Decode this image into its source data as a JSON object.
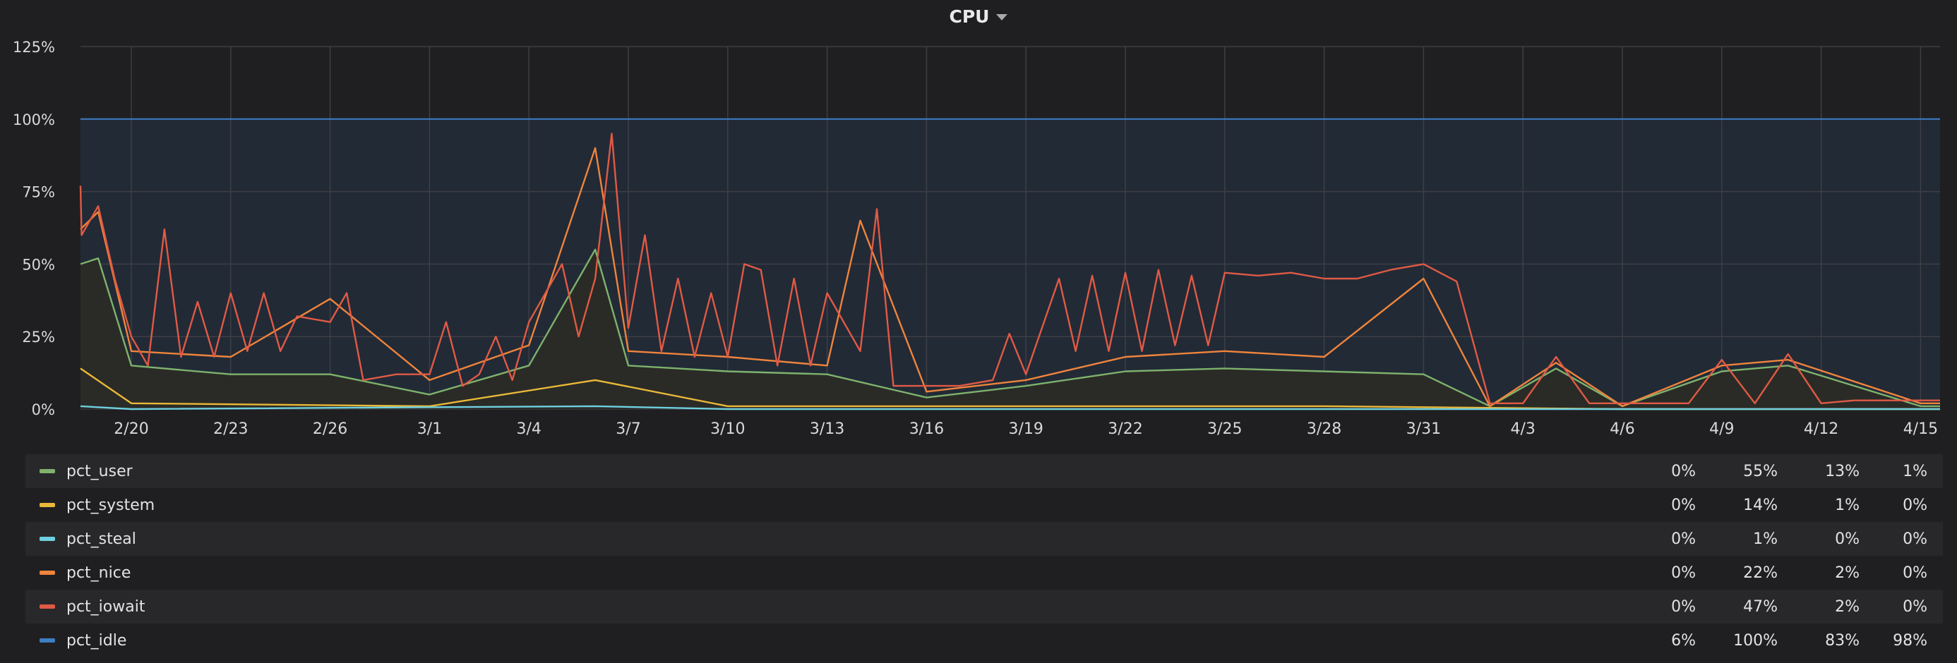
{
  "panel": {
    "title": "CPU"
  },
  "chart_data": {
    "type": "line",
    "ylim": [
      0,
      125
    ],
    "y_ticks": [
      "0%",
      "25%",
      "50%",
      "75%",
      "100%",
      "125%"
    ],
    "x_ticks": [
      "2/20",
      "2/23",
      "2/26",
      "3/1",
      "3/4",
      "3/7",
      "3/10",
      "3/13",
      "3/16",
      "3/19",
      "3/22",
      "3/25",
      "3/28",
      "3/31",
      "4/3",
      "4/6",
      "4/9",
      "4/12",
      "4/15"
    ],
    "grid": true,
    "legend_placement": "bottom",
    "series": [
      {
        "name": "pct_idle",
        "color": "#3e7ec5",
        "points": [
          [
            "2/18",
            100
          ],
          [
            "2/20",
            100
          ],
          [
            "3/1",
            100
          ],
          [
            "3/10",
            100
          ],
          [
            "3/19",
            100
          ],
          [
            "3/28",
            100
          ],
          [
            "4/6",
            100
          ],
          [
            "4/15",
            100
          ],
          [
            "4/16",
            100
          ]
        ]
      },
      {
        "name": "pct_iowait",
        "color": "#e05a45",
        "points": [
          [
            "2/18",
            77
          ],
          [
            "2/18",
            60
          ],
          [
            "2/19",
            70
          ],
          [
            "2/19",
            45
          ],
          [
            "2/20",
            25
          ],
          [
            "2/20",
            15
          ],
          [
            "2/21",
            62
          ],
          [
            "2/21",
            18
          ],
          [
            "2/22",
            37
          ],
          [
            "2/22",
            18
          ],
          [
            "2/23",
            40
          ],
          [
            "2/23",
            20
          ],
          [
            "2/24",
            40
          ],
          [
            "2/24",
            20
          ],
          [
            "2/25",
            32
          ],
          [
            "2/26",
            30
          ],
          [
            "2/26",
            40
          ],
          [
            "2/27",
            10
          ],
          [
            "2/28",
            12
          ],
          [
            "3/1",
            12
          ],
          [
            "3/1",
            30
          ],
          [
            "3/2",
            8
          ],
          [
            "3/2",
            12
          ],
          [
            "3/3",
            25
          ],
          [
            "3/3",
            10
          ],
          [
            "3/4",
            30
          ],
          [
            "3/5",
            50
          ],
          [
            "3/5",
            25
          ],
          [
            "3/6",
            45
          ],
          [
            "3/6",
            95
          ],
          [
            "3/7",
            28
          ],
          [
            "3/7",
            60
          ],
          [
            "3/8",
            20
          ],
          [
            "3/8",
            45
          ],
          [
            "3/9",
            18
          ],
          [
            "3/9",
            40
          ],
          [
            "3/10",
            18
          ],
          [
            "3/10",
            50
          ],
          [
            "3/11",
            48
          ],
          [
            "3/11",
            15
          ],
          [
            "3/12",
            45
          ],
          [
            "3/12",
            15
          ],
          [
            "3/13",
            40
          ],
          [
            "3/14",
            20
          ],
          [
            "3/14",
            69
          ],
          [
            "3/15",
            8
          ],
          [
            "3/16",
            8
          ],
          [
            "3/17",
            8
          ],
          [
            "3/18",
            10
          ],
          [
            "3/18",
            26
          ],
          [
            "3/19",
            12
          ],
          [
            "3/20",
            45
          ],
          [
            "3/20",
            20
          ],
          [
            "3/21",
            46
          ],
          [
            "3/21",
            20
          ],
          [
            "3/22",
            47
          ],
          [
            "3/22",
            20
          ],
          [
            "3/23",
            48
          ],
          [
            "3/23",
            22
          ],
          [
            "3/24",
            46
          ],
          [
            "3/24",
            22
          ],
          [
            "3/25",
            47
          ],
          [
            "3/26",
            46
          ],
          [
            "3/27",
            47
          ],
          [
            "3/28",
            45
          ],
          [
            "3/29",
            45
          ],
          [
            "3/30",
            48
          ],
          [
            "3/31",
            50
          ],
          [
            "4/1",
            44
          ],
          [
            "4/2",
            2
          ],
          [
            "4/3",
            2
          ],
          [
            "4/4",
            18
          ],
          [
            "4/5",
            2
          ],
          [
            "4/6",
            2
          ],
          [
            "4/7",
            2
          ],
          [
            "4/8",
            2
          ],
          [
            "4/9",
            17
          ],
          [
            "4/10",
            2
          ],
          [
            "4/11",
            19
          ],
          [
            "4/12",
            2
          ],
          [
            "4/13",
            3
          ],
          [
            "4/14",
            3
          ],
          [
            "4/15",
            3
          ],
          [
            "4/16",
            3
          ]
        ]
      },
      {
        "name": "pct_nice",
        "color": "#ef843c",
        "points": [
          [
            "2/18",
            62
          ],
          [
            "2/19",
            68
          ],
          [
            "2/20",
            20
          ],
          [
            "2/23",
            18
          ],
          [
            "2/26",
            38
          ],
          [
            "3/1",
            10
          ],
          [
            "3/4",
            22
          ],
          [
            "3/6",
            90
          ],
          [
            "3/7",
            20
          ],
          [
            "3/10",
            18
          ],
          [
            "3/13",
            15
          ],
          [
            "3/14",
            65
          ],
          [
            "3/16",
            6
          ],
          [
            "3/19",
            10
          ],
          [
            "3/22",
            18
          ],
          [
            "3/25",
            20
          ],
          [
            "3/28",
            18
          ],
          [
            "3/31",
            45
          ],
          [
            "4/2",
            1
          ],
          [
            "4/4",
            16
          ],
          [
            "4/6",
            1
          ],
          [
            "4/9",
            15
          ],
          [
            "4/11",
            17
          ],
          [
            "4/15",
            2
          ],
          [
            "4/16",
            2
          ]
        ]
      },
      {
        "name": "pct_user",
        "color": "#7eb26d",
        "points": [
          [
            "2/18",
            50
          ],
          [
            "2/19",
            52
          ],
          [
            "2/20",
            15
          ],
          [
            "2/23",
            12
          ],
          [
            "2/26",
            12
          ],
          [
            "3/1",
            5
          ],
          [
            "3/4",
            15
          ],
          [
            "3/6",
            55
          ],
          [
            "3/7",
            15
          ],
          [
            "3/10",
            13
          ],
          [
            "3/13",
            12
          ],
          [
            "3/16",
            4
          ],
          [
            "3/19",
            8
          ],
          [
            "3/22",
            13
          ],
          [
            "3/25",
            14
          ],
          [
            "3/28",
            13
          ],
          [
            "3/31",
            12
          ],
          [
            "4/2",
            1
          ],
          [
            "4/4",
            14
          ],
          [
            "4/6",
            1
          ],
          [
            "4/9",
            13
          ],
          [
            "4/11",
            15
          ],
          [
            "4/15",
            1
          ],
          [
            "4/16",
            1
          ]
        ]
      },
      {
        "name": "pct_system",
        "color": "#eab839",
        "points": [
          [
            "2/18",
            14
          ],
          [
            "2/20",
            2
          ],
          [
            "3/1",
            1
          ],
          [
            "3/6",
            10
          ],
          [
            "3/10",
            1
          ],
          [
            "3/19",
            1
          ],
          [
            "3/28",
            1
          ],
          [
            "4/6",
            0
          ],
          [
            "4/16",
            0
          ]
        ]
      },
      {
        "name": "pct_steal",
        "color": "#6ed0e0",
        "points": [
          [
            "2/18",
            1
          ],
          [
            "2/20",
            0
          ],
          [
            "3/6",
            1
          ],
          [
            "3/10",
            0
          ],
          [
            "4/16",
            0
          ]
        ]
      }
    ]
  },
  "legend": {
    "rows": [
      {
        "name": "pct_user",
        "color": "#7eb26d",
        "values": [
          "0%",
          "55%",
          "13%",
          "1%"
        ]
      },
      {
        "name": "pct_system",
        "color": "#eab839",
        "values": [
          "0%",
          "14%",
          "1%",
          "0%"
        ]
      },
      {
        "name": "pct_steal",
        "color": "#6ed0e0",
        "values": [
          "0%",
          "1%",
          "0%",
          "0%"
        ]
      },
      {
        "name": "pct_nice",
        "color": "#ef843c",
        "values": [
          "0%",
          "22%",
          "2%",
          "0%"
        ]
      },
      {
        "name": "pct_iowait",
        "color": "#e05a45",
        "values": [
          "0%",
          "47%",
          "2%",
          "0%"
        ]
      },
      {
        "name": "pct_idle",
        "color": "#3e7ec5",
        "values": [
          "6%",
          "100%",
          "83%",
          "98%"
        ]
      }
    ]
  }
}
